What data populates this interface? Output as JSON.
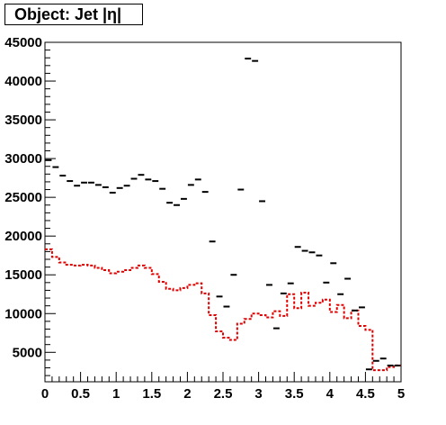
{
  "chart_data": {
    "type": "scatter",
    "title": "Object: Jet |η|",
    "xlabel": "",
    "ylabel": "",
    "xlim": [
      0,
      5
    ],
    "ylim": [
      1200,
      45000
    ],
    "grid": false,
    "x_ticks": [
      "0",
      "0.5",
      "1",
      "1.5",
      "2",
      "2.5",
      "3",
      "3.5",
      "4",
      "4.5",
      "5"
    ],
    "y_ticks": [
      "5000",
      "10000",
      "15000",
      "20000",
      "25000",
      "30000",
      "35000",
      "40000",
      "45000"
    ],
    "bin_width": 0.1,
    "series": [
      {
        "style": "black markers with horizontal error bars",
        "color": "#000000",
        "x": [
          0.05,
          0.15,
          0.25,
          0.35,
          0.45,
          0.55,
          0.65,
          0.75,
          0.85,
          0.95,
          1.05,
          1.15,
          1.25,
          1.35,
          1.45,
          1.55,
          1.65,
          1.75,
          1.85,
          1.95,
          2.05,
          2.15,
          2.25,
          2.35,
          2.45,
          2.55,
          2.65,
          2.75,
          2.85,
          2.95,
          3.05,
          3.15,
          3.25,
          3.35,
          3.45,
          3.55,
          3.65,
          3.75,
          3.85,
          3.95,
          4.05,
          4.15,
          4.25,
          4.35,
          4.45,
          4.55,
          4.65,
          4.75,
          4.85,
          4.95
        ],
        "values": [
          29800,
          28900,
          27800,
          27100,
          26500,
          26900,
          26900,
          26600,
          26300,
          25600,
          26200,
          26500,
          27400,
          27900,
          27300,
          27100,
          26100,
          24300,
          24000,
          24800,
          26600,
          27300,
          25700,
          19300,
          12200,
          10900,
          15000,
          26000,
          42900,
          42600,
          24500,
          13700,
          8100,
          12600,
          13900,
          18600,
          18100,
          17900,
          17500,
          14000,
          16500,
          12500,
          14500,
          10400,
          10800,
          2800,
          3900,
          4200,
          3300,
          3300
        ]
      },
      {
        "style": "red dashed histogram",
        "color": "#e00000",
        "x": [
          0.05,
          0.15,
          0.25,
          0.35,
          0.45,
          0.55,
          0.65,
          0.75,
          0.85,
          0.95,
          1.05,
          1.15,
          1.25,
          1.35,
          1.45,
          1.55,
          1.65,
          1.75,
          1.85,
          1.95,
          2.05,
          2.15,
          2.25,
          2.35,
          2.45,
          2.55,
          2.65,
          2.75,
          2.85,
          2.95,
          3.05,
          3.15,
          3.25,
          3.35,
          3.45,
          3.55,
          3.65,
          3.75,
          3.85,
          3.95,
          4.05,
          4.15,
          4.25,
          4.35,
          4.45,
          4.55,
          4.65,
          4.75,
          4.85,
          4.95
        ],
        "values": [
          18300,
          17300,
          16600,
          16300,
          16200,
          16300,
          16200,
          15900,
          15600,
          15200,
          15400,
          15600,
          15900,
          16200,
          15900,
          15100,
          14100,
          13200,
          13000,
          13300,
          13700,
          13900,
          12600,
          9800,
          7700,
          6900,
          6600,
          8700,
          9300,
          10000,
          9800,
          9500,
          10300,
          9700,
          12500,
          10700,
          12700,
          11000,
          11400,
          11800,
          10200,
          11100,
          9400,
          10400,
          8400,
          7900,
          2700,
          2700,
          3100,
          3300
        ]
      }
    ]
  }
}
